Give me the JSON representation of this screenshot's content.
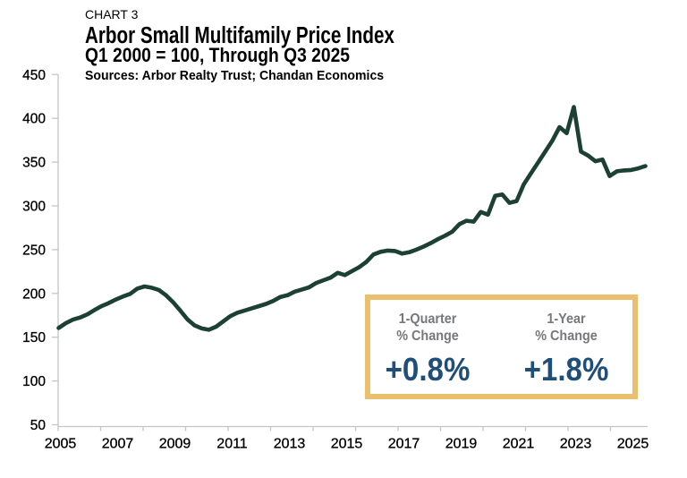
{
  "chart_data": {
    "type": "line",
    "chart_label": "CHART 3",
    "title": "Arbor Small Multifamily Price Index",
    "subtitle": "Q1 2000 = 100, Through Q3 2025",
    "source": "Sources: Arbor Realty Trust; Chandan Economics",
    "series": [
      {
        "name": "Arbor Small Multifamily Price Index",
        "start": "2005Q1",
        "end": "2025Q3",
        "frequency": "quarterly",
        "values": [
          160.5,
          166,
          170,
          172.5,
          176,
          181,
          185.5,
          189,
          193,
          196.5,
          199.5,
          205.5,
          208,
          206.5,
          204,
          198,
          190,
          180.5,
          170.5,
          163.5,
          160,
          158.5,
          162,
          168,
          174,
          178,
          180.5,
          183,
          185.5,
          188,
          191.5,
          196,
          198,
          202,
          204.5,
          207,
          212,
          215,
          218,
          223.5,
          221,
          225.5,
          230,
          236,
          244.5,
          247.5,
          249,
          248.5,
          245.5,
          247,
          250,
          253.5,
          257.5,
          262,
          266,
          270.5,
          279,
          283,
          282,
          293,
          290,
          311.5,
          313,
          303.5,
          305.5,
          324.5,
          337,
          349.5,
          362,
          374.5,
          390,
          383,
          413,
          362,
          357.5,
          351,
          353,
          334,
          339.5,
          340.5,
          341,
          342.8,
          345.5
        ]
      }
    ],
    "xtick_labels": [
      "2005",
      "2007",
      "2009",
      "2011",
      "2013",
      "2015",
      "2017",
      "2019",
      "2021",
      "2023",
      "2025"
    ],
    "ylim": [
      50,
      450
    ],
    "ytick_step": 50,
    "grid": false,
    "legend": false,
    "callout": {
      "items": [
        {
          "label_line1": "1-Quarter",
          "label_line2": "% Change",
          "value": "+0.8%"
        },
        {
          "label_line1": "1-Year",
          "label_line2": "% Change",
          "value": "+1.8%"
        }
      ]
    },
    "colors": {
      "line": "#1c4034",
      "axis": "#c3c5c7",
      "tick_text": "#000000",
      "callout_border": "#eabf6e",
      "callout_label": "#77787b",
      "callout_value": "#1f4e79"
    }
  },
  "layout_note": "index line chart with summary callout box"
}
